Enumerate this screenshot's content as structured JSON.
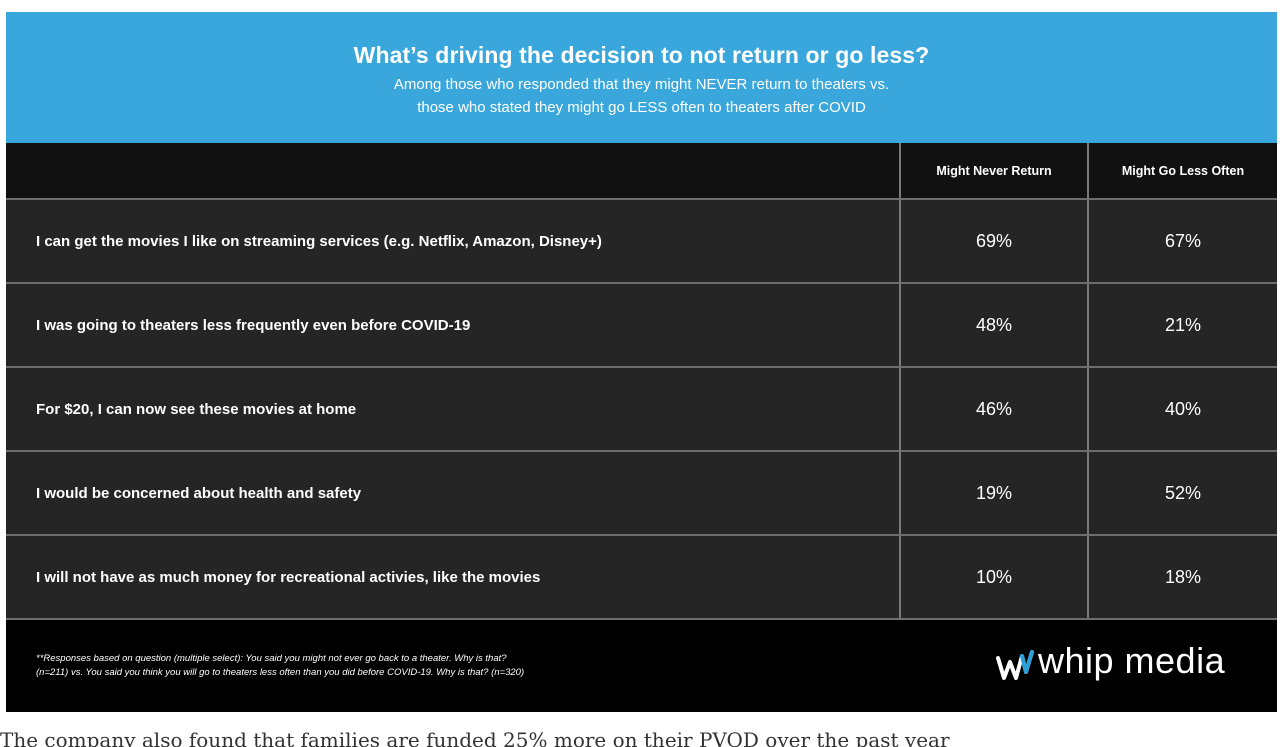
{
  "colors": {
    "header_bg": "#3aa7dc",
    "table_bg": "#252525",
    "footer_bg": "#000000",
    "text": "#ffffff",
    "logo_accent": "#2aa0d8"
  },
  "header": {
    "title": "What’s driving the decision to not return or go less?",
    "subtitle_line1": "Among those who responded that they might NEVER return to theaters vs.",
    "subtitle_line2": "those who stated they might go LESS often to theaters after COVID"
  },
  "chart_data": {
    "type": "table",
    "columns": [
      "",
      "Might Never Return",
      "Might Go Less Often"
    ],
    "series": [
      {
        "name": "Might Never Return",
        "values": [
          69,
          48,
          46,
          19,
          10
        ]
      },
      {
        "name": "Might Go Less Often",
        "values": [
          67,
          21,
          40,
          52,
          18
        ]
      }
    ],
    "categories": [
      "I can get the movies I like on streaming services (e.g. Netflix, Amazon, Disney+)",
      "I was going to theaters less frequently even before COVID-19",
      "For $20, I can now see these movies at home",
      "I would be concerned about health and safety",
      "I will not have as much money for recreational activies, like the movies"
    ],
    "rows": [
      {
        "label": "I can get the movies I like on streaming services (e.g. Netflix, Amazon, Disney+)",
        "never": "69%",
        "less": "67%"
      },
      {
        "label": "I was going to theaters less frequently even before COVID-19",
        "never": "48%",
        "less": "21%"
      },
      {
        "label": "For $20, I can now see these movies at home",
        "never": "46%",
        "less": "40%"
      },
      {
        "label": "I would be concerned about health and safety",
        "never": "19%",
        "less": "52%"
      },
      {
        "label": "I will not have as much money for recreational activies, like the movies",
        "never": "10%",
        "less": "18%"
      }
    ]
  },
  "footer": {
    "footnote_line1": "**Responses based on question (multiple select): You said you might not ever go back to a theater. Why is that?",
    "footnote_line2": "(n=211) vs. You said you think you will go to theaters less often than you did before COVID-19. Why is that? (n=320)",
    "logo_text": "whip media",
    "logo_icon": "whip-media-wave-mark"
  },
  "caption": "The company also found that families are funded 25% more on their PVOD over the past year"
}
